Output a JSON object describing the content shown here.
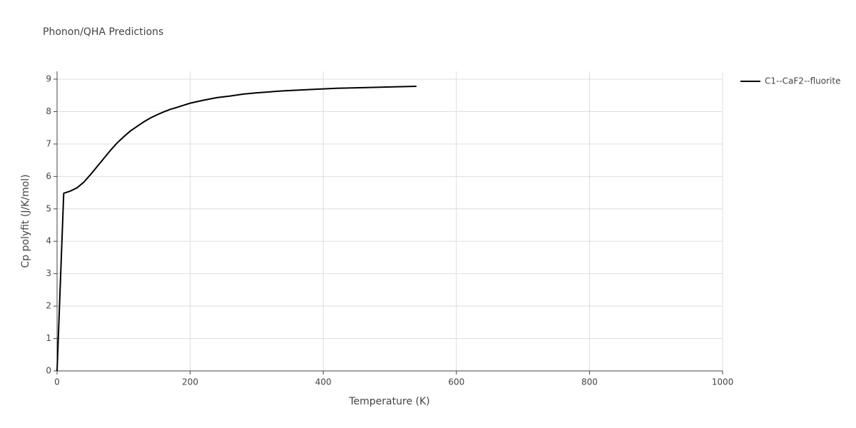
{
  "chart_data": {
    "type": "line",
    "title": "Phonon/QHA Predictions",
    "x_label": "Temperature (K)",
    "y_label": "Cp polyfit (J/K/mol)",
    "x": [
      0,
      10,
      20,
      30,
      40,
      50,
      60,
      70,
      80,
      90,
      100,
      110,
      120,
      130,
      140,
      150,
      160,
      170,
      180,
      200,
      220,
      240,
      260,
      280,
      300,
      340,
      380,
      420,
      460,
      500,
      540
    ],
    "series": [
      {
        "name": "C1--CaF2--fluorite",
        "color": "#000000",
        "values": [
          0,
          5.48,
          5.55,
          5.65,
          5.82,
          6.05,
          6.3,
          6.55,
          6.8,
          7.03,
          7.22,
          7.4,
          7.54,
          7.68,
          7.8,
          7.9,
          7.99,
          8.07,
          8.13,
          8.26,
          8.35,
          8.43,
          8.48,
          8.54,
          8.58,
          8.64,
          8.68,
          8.72,
          8.74,
          8.76,
          8.78
        ]
      }
    ],
    "xlim": [
      0,
      1000
    ],
    "xticks": [
      0,
      200,
      400,
      600,
      800,
      1000
    ],
    "ylim": [
      0,
      9
    ],
    "yticks": [
      0,
      1,
      2,
      3,
      4,
      5,
      6,
      7,
      8,
      9
    ],
    "grid": true,
    "legend": "right"
  }
}
